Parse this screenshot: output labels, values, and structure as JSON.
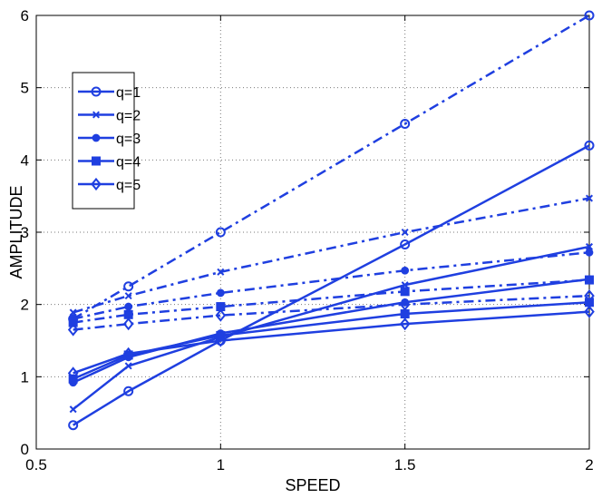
{
  "chart_data": {
    "type": "line",
    "xlabel": "SPEED",
    "ylabel": "AMPLITUDE",
    "xlim": [
      0.5,
      2
    ],
    "ylim": [
      0,
      6
    ],
    "xticks": [
      0.5,
      1,
      1.5,
      2
    ],
    "xtick_labels": [
      "0.5",
      "1",
      "1.5",
      "2"
    ],
    "yticks": [
      0,
      1,
      2,
      3,
      4,
      5,
      6
    ],
    "ytick_labels": [
      "0",
      "1",
      "2",
      "3",
      "4",
      "5",
      "6"
    ],
    "grid": true,
    "legend_position": "upper-left",
    "color": "#1f3fe0",
    "x": [
      0.6,
      0.75,
      1,
      1.5,
      2
    ],
    "legend": [
      {
        "label": "q=1",
        "marker": "circle"
      },
      {
        "label": "q=2",
        "marker": "x"
      },
      {
        "label": "q=3",
        "marker": "dot"
      },
      {
        "label": "q=4",
        "marker": "square"
      },
      {
        "label": "q=5",
        "marker": "diamond"
      }
    ],
    "series": [
      {
        "label": "q=1",
        "marker": "circle",
        "linestyle": "solid",
        "values": [
          0.33,
          0.8,
          1.5,
          2.83,
          4.2
        ]
      },
      {
        "label": "q=2",
        "marker": "x",
        "linestyle": "solid",
        "values": [
          0.55,
          1.15,
          1.55,
          2.27,
          2.8
        ]
      },
      {
        "label": "q=3",
        "marker": "dot",
        "linestyle": "solid",
        "values": [
          0.92,
          1.27,
          1.6,
          2.03,
          2.35
        ]
      },
      {
        "label": "q=4",
        "marker": "square",
        "linestyle": "solid",
        "values": [
          0.97,
          1.3,
          1.57,
          1.87,
          2.03
        ]
      },
      {
        "label": "q=5",
        "marker": "diamond",
        "linestyle": "solid",
        "values": [
          1.05,
          1.32,
          1.5,
          1.73,
          1.9
        ]
      },
      {
        "marker": "circle",
        "linestyle": "dashdot",
        "values": [
          1.8,
          2.25,
          3.0,
          4.5,
          6.0
        ]
      },
      {
        "marker": "x",
        "linestyle": "dashdot",
        "values": [
          1.89,
          2.12,
          2.45,
          3.0,
          3.47
        ]
      },
      {
        "marker": "dot",
        "linestyle": "dashdot",
        "values": [
          1.8,
          1.97,
          2.16,
          2.47,
          2.72
        ]
      },
      {
        "marker": "square",
        "linestyle": "dashdot",
        "values": [
          1.75,
          1.86,
          1.97,
          2.18,
          2.34
        ]
      },
      {
        "marker": "diamond",
        "linestyle": "dashdot",
        "values": [
          1.65,
          1.73,
          1.85,
          2.0,
          2.12
        ]
      }
    ]
  }
}
